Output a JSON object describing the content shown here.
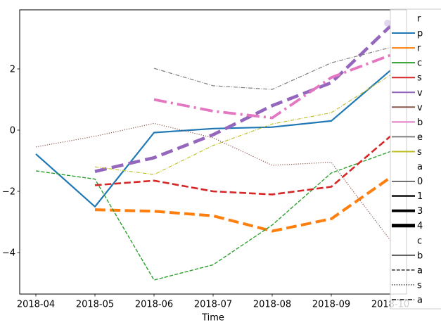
{
  "figure": {
    "background": "#ffffff",
    "spine_color": "#000000",
    "legend_border_color": "#cccccc",
    "legend_face": "rgba(255,255,255,0.8)"
  },
  "chart_data": {
    "type": "line",
    "title": "",
    "xlabel": "Time",
    "ylabel": "",
    "grid": false,
    "x_categories": [
      "2018-04",
      "2018-05",
      "2018-06",
      "2018-07",
      "2018-08",
      "2018-09",
      "2018-10"
    ],
    "y_tick_values": [
      2,
      0,
      -2,
      -4
    ],
    "y_tick_labels": [
      "2",
      "0",
      "−2",
      "−4"
    ],
    "ylim": [
      -5.35,
      3.93
    ],
    "legend_position": "upper right, overlapping axes, clipped by figure edge",
    "series": [
      {
        "name": "p",
        "color": "#1f77b4",
        "linewidth": 2.2,
        "linestyle": "solid",
        "values": [
          -0.78,
          -2.5,
          -0.08,
          0.05,
          0.1,
          0.3,
          1.95
        ]
      },
      {
        "name": "r",
        "color": "#ff7f0e",
        "linewidth": 4.0,
        "linestyle": "dashed",
        "values": [
          null,
          -2.6,
          -2.65,
          -2.8,
          -3.3,
          -2.9,
          -1.55
        ]
      },
      {
        "name": "c",
        "color": "#2ca02c",
        "linewidth": 1.4,
        "linestyle": "dashed",
        "values": [
          -1.33,
          -1.6,
          -4.9,
          -4.4,
          -3.1,
          -1.4,
          -0.7
        ]
      },
      {
        "name": "s",
        "color": "#d62728",
        "linewidth": 2.6,
        "linestyle": "dashed",
        "values": [
          null,
          -1.8,
          -1.65,
          -2.0,
          -2.1,
          -1.85,
          -0.2
        ]
      },
      {
        "name": "v",
        "color": "#9467bd",
        "linewidth": 4.6,
        "linestyle": "dashed",
        "values": [
          null,
          -1.35,
          -0.9,
          -0.15,
          0.8,
          1.55,
          3.4
        ]
      },
      {
        "name": "v",
        "color": "#8c564b",
        "linewidth": 1.2,
        "linestyle": "dotted",
        "values": [
          -0.55,
          -0.2,
          0.22,
          -0.25,
          -1.15,
          -1.05,
          -3.6
        ]
      },
      {
        "name": "b",
        "color": "#e377c2",
        "linewidth": 3.8,
        "linestyle": "dashdot",
        "values": [
          null,
          null,
          1.0,
          0.62,
          0.4,
          1.72,
          2.45
        ]
      },
      {
        "name": "e",
        "color": "#7f7f7f",
        "linewidth": 1.2,
        "linestyle": "dashdot",
        "values": [
          null,
          null,
          2.02,
          1.45,
          1.33,
          2.2,
          2.7
        ]
      },
      {
        "name": "s",
        "color": "#bcbd22",
        "linewidth": 1.1,
        "linestyle": "dashdot",
        "values": [
          null,
          -1.2,
          -1.45,
          -0.5,
          0.2,
          0.57,
          1.8
        ]
      }
    ],
    "legend_entries": [
      {
        "kind": "title",
        "label": "r"
      },
      {
        "kind": "hue",
        "label": "p",
        "color": "#1f77b4"
      },
      {
        "kind": "hue",
        "label": "r",
        "color": "#ff7f0e"
      },
      {
        "kind": "hue",
        "label": "c",
        "color": "#2ca02c"
      },
      {
        "kind": "hue",
        "label": "s",
        "color": "#d62728"
      },
      {
        "kind": "hue",
        "label": "v",
        "color": "#9467bd"
      },
      {
        "kind": "hue",
        "label": "v",
        "color": "#8c564b"
      },
      {
        "kind": "hue",
        "label": "b",
        "color": "#e377c2"
      },
      {
        "kind": "hue",
        "label": "e",
        "color": "#7f7f7f"
      },
      {
        "kind": "hue",
        "label": "s",
        "color": "#bcbd22"
      },
      {
        "kind": "title",
        "label": "a"
      },
      {
        "kind": "size",
        "label": "0",
        "linewidth": 1.2
      },
      {
        "kind": "size",
        "label": "1",
        "linewidth": 2.4
      },
      {
        "kind": "size",
        "label": "3",
        "linewidth": 3.8
      },
      {
        "kind": "size",
        "label": "4",
        "linewidth": 5.2
      },
      {
        "kind": "title",
        "label": "c"
      },
      {
        "kind": "style",
        "label": "b",
        "linestyle": "solid"
      },
      {
        "kind": "style",
        "label": "a",
        "linestyle": "dashed"
      },
      {
        "kind": "style",
        "label": "s",
        "linestyle": "dotted"
      },
      {
        "kind": "style",
        "label": "a",
        "linestyle": "dashdot"
      }
    ]
  }
}
